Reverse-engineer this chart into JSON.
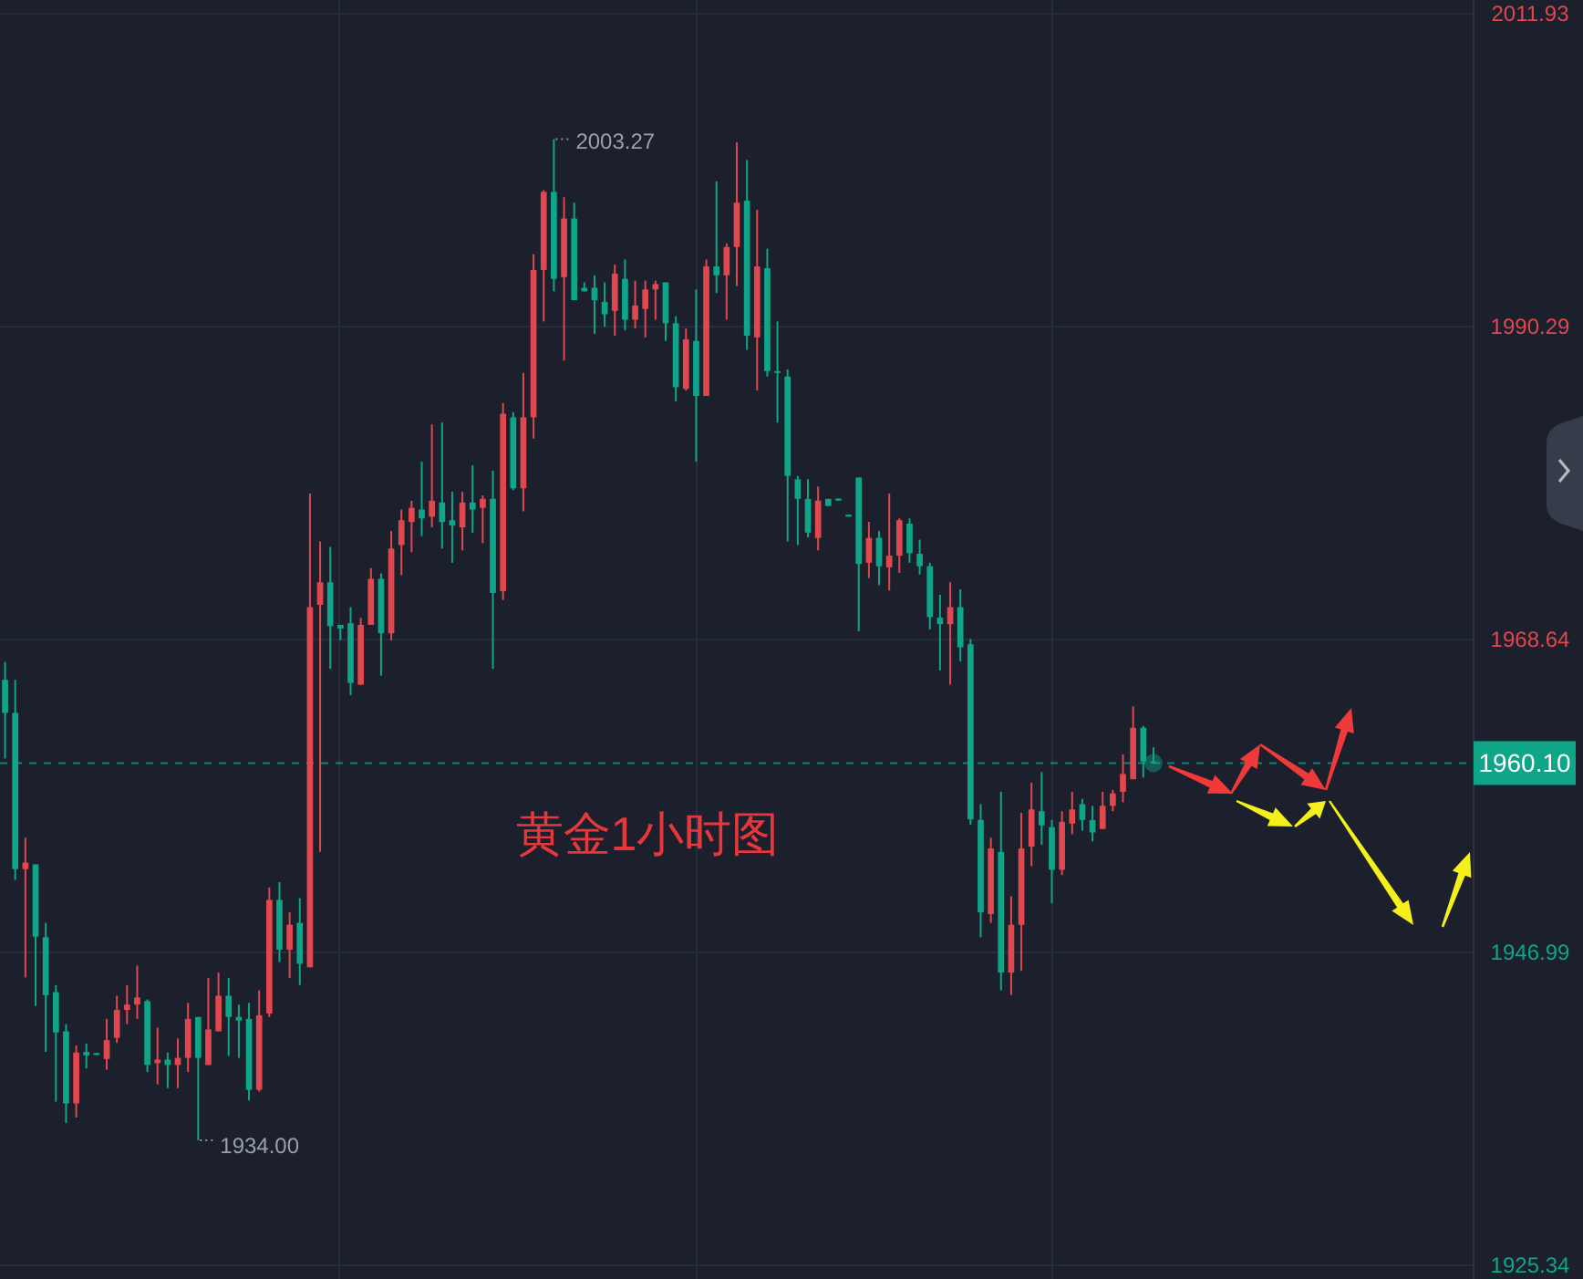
{
  "chart_data": {
    "type": "candlestick",
    "title": "黄金1小时图",
    "categories": [
      null,
      null,
      null,
      null,
      null,
      null,
      null,
      null,
      null,
      null,
      null,
      null,
      null,
      null,
      null,
      null,
      null,
      null,
      null,
      null,
      null,
      null,
      null,
      null,
      null,
      null,
      null,
      null,
      null,
      null,
      null,
      null,
      null,
      null,
      null,
      null,
      null,
      null,
      null,
      null,
      null,
      null,
      null,
      null,
      null,
      null,
      null,
      null,
      null,
      null,
      null,
      null,
      null,
      null,
      null,
      null,
      null,
      null,
      null,
      null,
      null,
      null,
      null,
      null,
      null,
      null,
      null,
      null,
      null,
      null,
      null,
      null,
      null,
      null,
      null,
      null,
      null,
      null,
      null,
      null,
      null,
      null,
      null,
      null,
      null,
      null,
      null,
      null,
      null,
      null,
      null,
      null,
      null,
      null,
      null,
      null,
      null,
      null,
      null,
      null,
      null,
      null,
      null,
      null,
      null,
      null,
      null,
      null,
      null,
      null,
      null,
      null,
      null,
      null,
      null,
      null,
      null,
      null,
      null,
      null,
      null,
      null,
      null,
      null,
      null,
      null,
      null,
      null,
      null,
      null,
      null,
      null,
      null,
      null,
      null,
      null,
      null,
      null,
      null,
      null,
      null,
      null,
      null,
      null,
      null
    ],
    "ohlc": [
      [
        1965.86,
        1967.09,
        1960.42,
        1963.57
      ],
      [
        1963.57,
        1965.86,
        1952.02,
        1952.76
      ],
      [
        1952.76,
        1954.93,
        1945.27,
        1953.21
      ],
      [
        1953.09,
        1953.09,
        1943.3,
        1948.09
      ],
      [
        1948.05,
        1949.04,
        1940.11,
        1944.04
      ],
      [
        1944.25,
        1944.74,
        1936.67,
        1941.46
      ],
      [
        1941.54,
        1942.04,
        1935.2,
        1936.55
      ],
      [
        1936.55,
        1940.56,
        1935.57,
        1940.07
      ],
      [
        1940.11,
        1940.68,
        1938.97,
        1939.87
      ],
      [
        1940.03,
        1940.03,
        1939.9,
        1939.9
      ],
      [
        1939.62,
        1942.4,
        1938.88,
        1940.93
      ],
      [
        1941.09,
        1944.0,
        1940.73,
        1943.02
      ],
      [
        1943.02,
        1944.74,
        1942.04,
        1943.39
      ],
      [
        1943.39,
        1946.09,
        1942.4,
        1943.88
      ],
      [
        1943.63,
        1943.75,
        1938.72,
        1939.21
      ],
      [
        1939.33,
        1941.79,
        1937.86,
        1939.58
      ],
      [
        1939.58,
        1940.07,
        1937.61,
        1939.21
      ],
      [
        1939.21,
        1941.05,
        1937.61,
        1939.7
      ],
      [
        1939.7,
        1943.51,
        1938.72,
        1942.4
      ],
      [
        1942.53,
        1942.53,
        1934.0,
        1939.7
      ],
      [
        1939.21,
        1945.23,
        1939.21,
        1941.67
      ],
      [
        1941.54,
        1945.6,
        1941.54,
        1944.0
      ],
      [
        1944.0,
        1945.23,
        1939.83,
        1942.53
      ],
      [
        1942.53,
        1943.39,
        1939.7,
        1942.28
      ],
      [
        1942.4,
        1943.51,
        1936.75,
        1937.49
      ],
      [
        1937.49,
        1944.37,
        1937.37,
        1942.65
      ],
      [
        1942.77,
        1951.49,
        1942.53,
        1950.63
      ],
      [
        1950.63,
        1951.86,
        1946.33,
        1947.19
      ],
      [
        1947.19,
        1949.77,
        1945.23,
        1948.91
      ],
      [
        1949.04,
        1950.75,
        1944.74,
        1946.21
      ],
      [
        1945.97,
        1978.75,
        1945.97,
        1970.89
      ],
      [
        1971.05,
        1975.43,
        1953.95,
        1972.61
      ],
      [
        1972.61,
        1975.06,
        1966.63,
        1969.58
      ],
      [
        1969.66,
        1969.66,
        1968.59,
        1969.41
      ],
      [
        1969.78,
        1970.89,
        1964.79,
        1965.65
      ],
      [
        1965.52,
        1970.15,
        1965.52,
        1969.66
      ],
      [
        1969.66,
        1973.59,
        1969.66,
        1972.85
      ],
      [
        1972.85,
        1973.22,
        1966.14,
        1969.08
      ],
      [
        1969.08,
        1976.17,
        1968.59,
        1974.94
      ],
      [
        1975.18,
        1977.64,
        1973.1,
        1976.9
      ],
      [
        1976.78,
        1978.25,
        1974.69,
        1977.76
      ],
      [
        1977.64,
        1980.96,
        1975.8,
        1977.03
      ],
      [
        1977.15,
        1983.53,
        1976.41,
        1978.25
      ],
      [
        1978.13,
        1983.66,
        1974.94,
        1976.78
      ],
      [
        1976.9,
        1978.87,
        1973.96,
        1976.53
      ],
      [
        1976.41,
        1978.87,
        1974.82,
        1978.13
      ],
      [
        1978.13,
        1980.71,
        1976.04,
        1977.64
      ],
      [
        1977.76,
        1978.62,
        1975.31,
        1978.38
      ],
      [
        1978.38,
        1980.34,
        1966.63,
        1971.87
      ],
      [
        1971.99,
        1985.01,
        1971.38,
        1984.27
      ],
      [
        1984.03,
        1984.39,
        1978.99,
        1979.11
      ],
      [
        1979.11,
        1987.1,
        1977.52,
        1984.03
      ],
      [
        1984.03,
        1995.32,
        1982.55,
        1994.22
      ],
      [
        1994.22,
        1999.74,
        1990.66,
        1999.62
      ],
      [
        1999.62,
        2003.27,
        1992.74,
        1993.6
      ],
      [
        1993.73,
        1999.25,
        1987.95,
        1997.78
      ],
      [
        1997.78,
        1998.88,
        1992.13,
        1992.13
      ],
      [
        1992.99,
        1993.36,
        1992.74,
        1992.74
      ],
      [
        1992.99,
        1993.85,
        1989.8,
        1992.13
      ],
      [
        1992.01,
        1993.36,
        1990.29,
        1991.15
      ],
      [
        1991.39,
        1994.59,
        1989.67,
        1993.97
      ],
      [
        1993.6,
        1994.95,
        1990.04,
        1990.78
      ],
      [
        1990.78,
        1993.48,
        1990.17,
        1991.76
      ],
      [
        1991.52,
        1993.48,
        1989.55,
        1992.87
      ],
      [
        1992.87,
        1993.48,
        1990.78,
        1993.24
      ],
      [
        1993.36,
        1993.36,
        1989.31,
        1990.53
      ],
      [
        1990.53,
        1991.02,
        1985.13,
        1986.11
      ],
      [
        1985.99,
        1990.17,
        1985.87,
        1989.43
      ],
      [
        1989.31,
        1992.87,
        1980.96,
        1985.5
      ],
      [
        1985.5,
        1994.95,
        1985.5,
        1994.46
      ],
      [
        1994.46,
        2000.36,
        1992.62,
        1993.85
      ],
      [
        1993.85,
        1996.06,
        1990.78,
        1995.81
      ],
      [
        1995.81,
        2003.06,
        1993.11,
        1998.88
      ],
      [
        1999.01,
        2001.83,
        1988.69,
        1989.67
      ],
      [
        1989.55,
        1998.39,
        1985.87,
        1994.46
      ],
      [
        1994.34,
        1995.69,
        1986.85,
        1987.22
      ],
      [
        1987.22,
        1990.66,
        1983.66,
        1987.1
      ],
      [
        1986.85,
        1987.34,
        1975.43,
        1979.97
      ],
      [
        1979.73,
        1979.97,
        1975.18,
        1978.38
      ],
      [
        1978.38,
        1979.74,
        1975.72,
        1976.05
      ],
      [
        1975.68,
        1979.24,
        1974.82,
        1978.26
      ],
      [
        1978.38,
        1978.38,
        1977.89,
        1977.89
      ],
      [
        1978.4,
        1978.4,
        1978.26,
        1978.26
      ],
      [
        1977.29,
        1977.29,
        1977.15,
        1977.15
      ],
      [
        1979.86,
        1979.86,
        1969.22,
        1973.88
      ],
      [
        1973.96,
        1976.79,
        1972.9,
        1975.68
      ],
      [
        1975.68,
        1976.17,
        1972.41,
        1973.72
      ],
      [
        1973.64,
        1978.75,
        1972.04,
        1974.45
      ],
      [
        1974.45,
        1977.03,
        1973.27,
        1976.91
      ],
      [
        1976.67,
        1977.03,
        1973.96,
        1974.62
      ],
      [
        1974.58,
        1975.56,
        1973.15,
        1973.72
      ],
      [
        1973.72,
        1973.96,
        1969.34,
        1970.2
      ],
      [
        1970.16,
        1971.75,
        1966.51,
        1969.71
      ],
      [
        1969.71,
        1972.61,
        1965.53,
        1970.89
      ],
      [
        1970.89,
        1972.12,
        1967.13,
        1968.11
      ],
      [
        1968.32,
        1968.68,
        1955.83,
        1956.2
      ],
      [
        1956.16,
        1957.26,
        1948.05,
        1949.77
      ],
      [
        1949.65,
        1954.93,
        1949.04,
        1954.19
      ],
      [
        1953.95,
        1958.12,
        1944.37,
        1945.6
      ],
      [
        1945.6,
        1950.88,
        1944.04,
        1948.91
      ],
      [
        1948.91,
        1956.65,
        1945.72,
        1954.19
      ],
      [
        1954.32,
        1958.74,
        1952.96,
        1956.89
      ],
      [
        1956.77,
        1959.47,
        1954.44,
        1955.79
      ],
      [
        1955.67,
        1956.16,
        1950.39,
        1952.72
      ],
      [
        1952.72,
        1956.77,
        1952.35,
        1956.03
      ],
      [
        1955.91,
        1958.12,
        1955.18,
        1956.89
      ],
      [
        1957.26,
        1957.63,
        1955.42,
        1956.16
      ],
      [
        1956.16,
        1957.14,
        1954.68,
        1955.3
      ],
      [
        1955.54,
        1958.12,
        1955.54,
        1957.14
      ],
      [
        1957.14,
        1958.25,
        1956.77,
        1958.0
      ],
      [
        1958.12,
        1960.7,
        1957.39,
        1959.35
      ],
      [
        1958.98,
        1964.02,
        1958.98,
        1962.54
      ],
      [
        1962.54,
        1962.67,
        1959.1,
        1960.21
      ],
      [
        1960.21,
        1961.19,
        1960.05,
        1960.1
      ],
      null,
      null,
      null,
      null,
      null,
      null,
      null,
      null,
      null,
      null,
      null,
      null,
      null,
      null,
      null,
      null,
      null,
      null,
      null,
      null,
      null,
      null,
      null,
      null,
      null,
      null,
      null,
      null,
      null,
      null,
      null
    ],
    "colors": [
      "#0fa588",
      "#0fa588",
      "#e0474f",
      "#0fa588",
      "#0fa588",
      "#0fa588",
      "#0fa588",
      "#e0474f",
      "#0fa588",
      "#0fa588",
      "#e0474f",
      "#e0474f",
      "#e0474f",
      "#e0474f",
      "#0fa588",
      "#e0474f",
      "#0fa588",
      "#e0474f",
      "#e0474f",
      "#0fa588",
      "#e0474f",
      "#e0474f",
      "#0fa588",
      "#0fa588",
      "#0fa588",
      "#e0474f",
      "#e0474f",
      "#0fa588",
      "#e0474f",
      "#0fa588",
      "#e0474f",
      "#e0474f",
      "#0fa588",
      "#0fa588",
      "#0fa588",
      "#e0474f",
      "#e0474f",
      "#0fa588",
      "#e0474f",
      "#e0474f",
      "#e0474f",
      "#0fa588",
      "#e0474f",
      "#0fa588",
      "#0fa588",
      "#e0474f",
      "#0fa588",
      "#e0474f",
      "#0fa588",
      "#e0474f",
      "#0fa588",
      "#e0474f",
      "#e0474f",
      "#e0474f",
      "#0fa588",
      "#e0474f",
      "#0fa588",
      "#0fa588",
      "#0fa588",
      "#0fa588",
      "#e0474f",
      "#0fa588",
      "#e0474f",
      "#e0474f",
      "#e0474f",
      "#0fa588",
      "#0fa588",
      "#e0474f",
      "#0fa588",
      "#e0474f",
      "#0fa588",
      "#e0474f",
      "#e0474f",
      "#0fa588",
      "#e0474f",
      "#0fa588",
      "#0fa588",
      "#0fa588",
      "#0fa588",
      "#0fa588",
      "#e0474f",
      "#0fa588",
      "#0fa588",
      "#0fa588",
      "#0fa588",
      "#e0474f",
      "#0fa588",
      "#e0474f",
      "#e0474f",
      "#0fa588",
      "#0fa588",
      "#0fa588",
      "#0fa588",
      "#e0474f",
      "#0fa588",
      "#0fa588",
      "#0fa588",
      "#e0474f",
      "#0fa588",
      "#e0474f",
      "#e0474f",
      "#e0474f",
      "#0fa588",
      "#0fa588",
      "#e0474f",
      "#e0474f",
      "#0fa588",
      "#0fa588",
      "#e0474f",
      "#e0474f",
      "#e0474f",
      "#e0474f",
      "#0fa588",
      "#0fa588",
      null,
      null,
      null,
      null,
      null,
      null,
      null,
      null,
      null,
      null,
      null,
      null,
      null,
      null,
      null,
      null,
      null,
      null,
      null,
      null,
      null,
      null,
      null,
      null,
      null,
      null,
      null,
      null,
      null,
      null,
      null
    ],
    "ylim": [
      1924.4,
      2012.9
    ],
    "yticks": [
      1925.34,
      1946.99,
      1968.64,
      1990.29,
      2011.93
    ],
    "grid": "y",
    "ref_lines": [
      {
        "axis": "y",
        "value": 1960.1,
        "label": "1960.10",
        "color": "#0fa588",
        "line_style": "dashed"
      }
    ],
    "annotations": [
      "2003.27",
      "1934.00"
    ]
  }
}
